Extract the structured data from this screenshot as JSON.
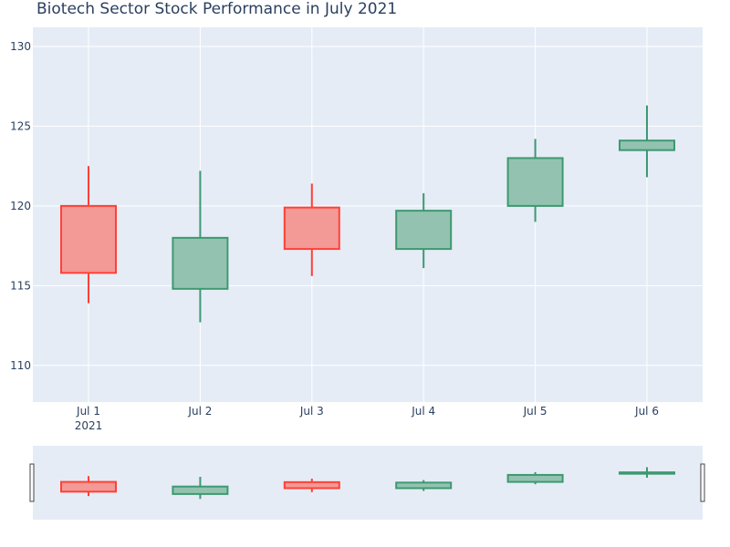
{
  "chart_data": {
    "type": "candlestick",
    "title": "Biotech Sector Stock Performance in July 2021",
    "xlabel": "",
    "ylabel": "",
    "categories": [
      "Jul 1",
      "Jul 2",
      "Jul 3",
      "Jul 4",
      "Jul 5",
      "Jul 6"
    ],
    "year_label": "2021",
    "ylim": [
      107.7,
      131.2
    ],
    "yticks": [
      110,
      115,
      120,
      125,
      130
    ],
    "grid": true,
    "legend": "none",
    "rangeslider": true,
    "colors": {
      "increasing_line": "#3d9970",
      "increasing_fill": "#93c3b0",
      "decreasing_line": "#ff4136",
      "decreasing_fill": "#f39996",
      "plot_bg": "#e5ecf6",
      "grid": "#ffffff"
    },
    "candles": [
      {
        "date": "Jul 1",
        "open": 120.0,
        "high": 122.5,
        "low": 113.9,
        "close": 115.8
      },
      {
        "date": "Jul 2",
        "open": 114.8,
        "high": 122.2,
        "low": 112.7,
        "close": 118.0
      },
      {
        "date": "Jul 3",
        "open": 119.9,
        "high": 121.4,
        "low": 115.6,
        "close": 117.3
      },
      {
        "date": "Jul 4",
        "open": 117.3,
        "high": 120.8,
        "low": 116.1,
        "close": 119.7
      },
      {
        "date": "Jul 5",
        "open": 120.0,
        "high": 124.2,
        "low": 119.0,
        "close": 123.0
      },
      {
        "date": "Jul 6",
        "open": 123.5,
        "high": 126.3,
        "low": 121.8,
        "close": 124.1
      }
    ]
  }
}
